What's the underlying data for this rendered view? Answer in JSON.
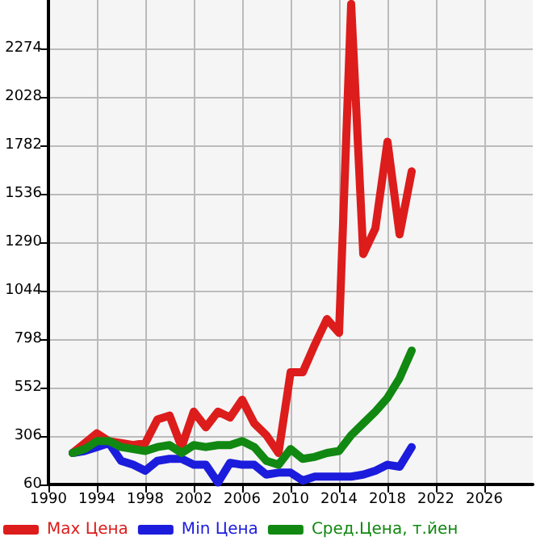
{
  "chart_data": {
    "type": "line",
    "x": [
      1992,
      1993,
      1994,
      1995,
      1996,
      1997,
      1998,
      1999,
      2000,
      2001,
      2002,
      2003,
      2004,
      2005,
      2006,
      2007,
      2008,
      2009,
      2010,
      2011,
      2012,
      2013,
      2014,
      2015,
      2016,
      2017,
      2018,
      2019,
      2020
    ],
    "series": [
      {
        "name": "Max Цена",
        "color": "#dd1c1c",
        "values": [
          220,
          270,
          320,
          280,
          270,
          260,
          270,
          390,
          410,
          250,
          430,
          350,
          430,
          400,
          490,
          370,
          310,
          220,
          630,
          630,
          770,
          900,
          830,
          2500,
          1230,
          1360,
          1800,
          1330,
          1650
        ]
      },
      {
        "name": "Min Цена",
        "color": "#1c1cdd",
        "values": [
          220,
          230,
          250,
          270,
          180,
          160,
          130,
          180,
          190,
          190,
          160,
          160,
          70,
          170,
          160,
          160,
          110,
          120,
          120,
          80,
          100,
          100,
          100,
          100,
          110,
          130,
          160,
          150,
          250
        ]
      },
      {
        "name": "Сред.Цена, т.йен",
        "color": "#118811",
        "values": [
          220,
          240,
          280,
          280,
          250,
          240,
          230,
          250,
          260,
          220,
          260,
          250,
          260,
          260,
          280,
          250,
          180,
          160,
          240,
          190,
          200,
          220,
          230,
          310,
          370,
          430,
          500,
          600,
          740
        ]
      }
    ],
    "xlim": [
      1990,
      2030
    ],
    "xticks": [
      1990,
      1994,
      1998,
      2002,
      2006,
      2010,
      2014,
      2018,
      2022,
      2026
    ],
    "ylim": [
      60,
      2520
    ],
    "yticks": [
      60,
      306,
      552,
      798,
      1044,
      1290,
      1536,
      1782,
      2028,
      2274
    ],
    "grid": true,
    "legend": "bottom",
    "marker": "none",
    "line_style": "solid"
  }
}
